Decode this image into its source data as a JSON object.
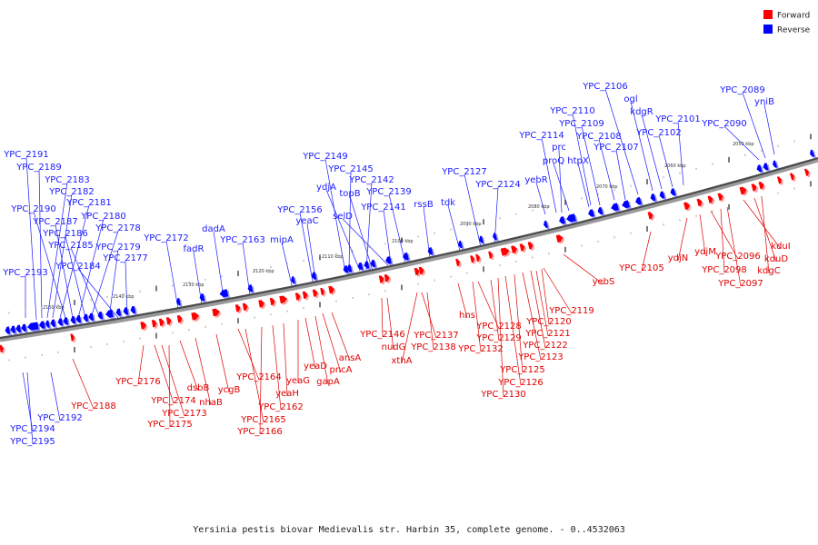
{
  "caption": "Yersinia pestis biovar Medievalis str. Harbin 35, complete genome. - 0..4532063",
  "legend": [
    {
      "label": "Forward",
      "color": "#ff0000"
    },
    {
      "label": "Reverse",
      "color": "#0000ff"
    }
  ],
  "ticks": [
    "2050 kbp",
    "2060 kbp",
    "2070 kbp",
    "2080 kbp",
    "2090 kbp",
    "2100 kbp",
    "2110 kbp",
    "2120 kbp",
    "2130 kbp",
    "2140 kbp",
    "2150 kbp"
  ],
  "reverse_labels": [
    "YPC_2191",
    "YPC_2189",
    "YPC_2183",
    "YPC_2182",
    "YPC_2181",
    "YPC_2190",
    "YPC_2187",
    "YPC_2180",
    "YPC_2186",
    "YPC_2178",
    "YPC_2185",
    "YPC_2179",
    "YPC_2184",
    "YPC_2177",
    "YPC_2193",
    "YPC_2172",
    "fadR",
    "dadA",
    "YPC_2163",
    "mipA",
    "YPC_2156",
    "yeaC",
    "YPC_2149",
    "YPC_2145",
    "ydjA",
    "YPC_2142",
    "topB",
    "selD",
    "YPC_2139",
    "YPC_2141",
    "rssB",
    "tdk",
    "YPC_2127",
    "YPC_2124",
    "yebR",
    "YPC_2114",
    "prc",
    "proQ",
    "htpX",
    "YPC_2110",
    "YPC_2109",
    "YPC_2108",
    "YPC_2107",
    "YPC_2106",
    "ogl",
    "kdgR",
    "YPC_2102",
    "YPC_2101",
    "YPC_2090",
    "YPC_2089",
    "yniB",
    "YPC_2194",
    "YPC_2195",
    "YPC_2192"
  ],
  "forward_labels": [
    "YPC_2188",
    "YPC_2176",
    "YPC_2174",
    "YPC_2173",
    "YPC_2175",
    "dsbB",
    "nhaB",
    "ycgB",
    "YPC_2164",
    "YPC_2165",
    "YPC_2166",
    "YPC_2162",
    "yeaH",
    "yeaG",
    "yeaD",
    "gapA",
    "pncA",
    "ansA",
    "YPC_2146",
    "nudG",
    "xthA",
    "YPC_2137",
    "YPC_2138",
    "hns",
    "YPC_2132",
    "YPC_2128",
    "YPC_2129",
    "YPC_2130",
    "YPC_2126",
    "YPC_2125",
    "YPC_2123",
    "YPC_2122",
    "YPC_2121",
    "YPC_2120",
    "YPC_2119",
    "yebS",
    "YPC_2105",
    "ydjN",
    "ydjM",
    "YPC_2096",
    "YPC_2098",
    "YPC_2097",
    "kduI",
    "kduD",
    "kdgC"
  ]
}
